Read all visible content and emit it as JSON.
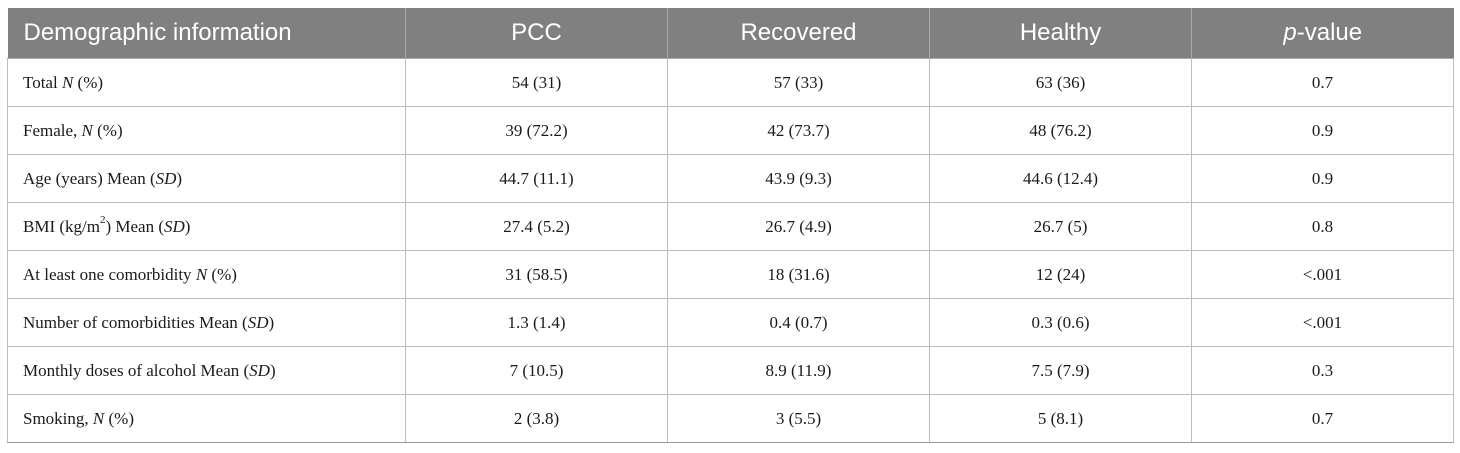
{
  "table": {
    "headers": [
      "Demographic information",
      "PCC",
      "Recovered",
      "Healthy",
      "-value"
    ],
    "p_value_prefix": "p",
    "rows": [
      {
        "label_parts": [
          "Total ",
          "N",
          " (%)"
        ],
        "values": [
          "54 (31)",
          "57 (33)",
          "63 (36)",
          "0.7"
        ]
      },
      {
        "label_parts": [
          "Female, ",
          "N",
          " (%)"
        ],
        "values": [
          "39 (72.2)",
          "42 (73.7)",
          "48 (76.2)",
          "0.9"
        ]
      },
      {
        "label_parts": [
          "Age (years) Mean (",
          "SD",
          ")"
        ],
        "values": [
          "44.7 (11.1)",
          "43.9 (9.3)",
          "44.6 (12.4)",
          "0.9"
        ]
      },
      {
        "label_parts": [
          "BMI (kg/m",
          "2",
          ") Mean (",
          "SD",
          ")"
        ],
        "values": [
          "27.4 (5.2)",
          "26.7 (4.9)",
          "26.7 (5)",
          "0.8"
        ]
      },
      {
        "label_parts": [
          "At least one comorbidity ",
          "N",
          " (%)"
        ],
        "values": [
          "31 (58.5)",
          "18 (31.6)",
          "12 (24)",
          "<.001"
        ]
      },
      {
        "label_parts": [
          "Number of comorbidities Mean (",
          "SD",
          ")"
        ],
        "values": [
          "1.3 (1.4)",
          "0.4 (0.7)",
          "0.3 (0.6)",
          "<.001"
        ]
      },
      {
        "label_parts": [
          "Monthly doses of alcohol Mean (",
          "SD",
          ")"
        ],
        "values": [
          "7 (10.5)",
          "8.9 (11.9)",
          "7.5 (7.9)",
          "0.3"
        ]
      },
      {
        "label_parts": [
          "Smoking, ",
          "N",
          " (%)"
        ],
        "values": [
          "2 (3.8)",
          "3 (5.5)",
          "5 (8.1)",
          "0.7"
        ]
      }
    ]
  }
}
